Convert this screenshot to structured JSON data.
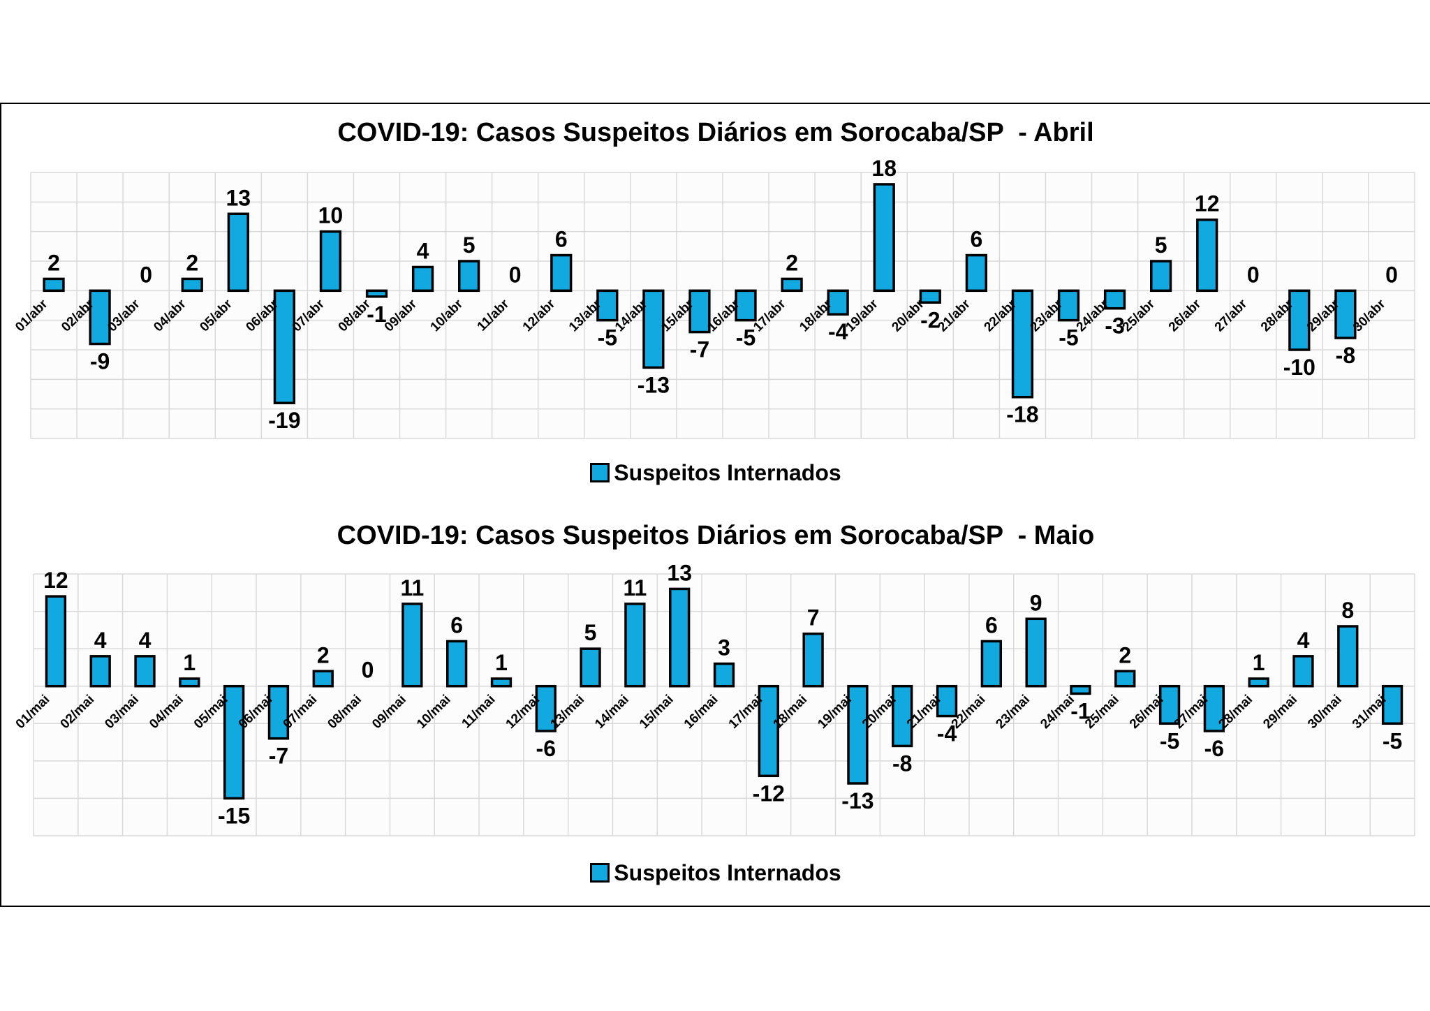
{
  "colors": {
    "bar_fill": "#12a8e0",
    "bar_stroke": "#000000",
    "grid": "#d9d9d9",
    "plot_bg": "#fcfcfc"
  },
  "chart_data": [
    {
      "type": "bar",
      "title": "COVID-19: Casos Suspeitos Diários em Sorocaba/SP  - Abril",
      "legend": "Suspeitos Internados",
      "legend_position": "bottom",
      "grid": true,
      "ylim": [
        -25,
        20
      ],
      "categories": [
        "01/abr",
        "02/abr",
        "03/abr",
        "04/abr",
        "05/abr",
        "06/abr",
        "07/abr",
        "08/abr",
        "09/abr",
        "10/abr",
        "11/abr",
        "12/abr",
        "13/abr",
        "14/abr",
        "15/abr",
        "16/abr",
        "17/abr",
        "18/abr",
        "19/abr",
        "20/abr",
        "21/abr",
        "22/abr",
        "23/abr",
        "24/abr",
        "25/abr",
        "26/abr",
        "27/abr",
        "28/abr",
        "29/abr",
        "30/abr"
      ],
      "series": [
        {
          "name": "Suspeitos Internados",
          "values": [
            2,
            -9,
            0,
            2,
            13,
            -19,
            10,
            -1,
            4,
            5,
            0,
            6,
            -5,
            -13,
            -7,
            -5,
            2,
            -4,
            18,
            -2,
            6,
            -18,
            -5,
            -3,
            5,
            12,
            0,
            -10,
            -8,
            0
          ]
        }
      ]
    },
    {
      "type": "bar",
      "title": "COVID-19: Casos Suspeitos Diários em Sorocaba/SP  - Maio",
      "legend": "Suspeitos Internados",
      "legend_position": "bottom",
      "grid": true,
      "ylim": [
        -20,
        15
      ],
      "categories": [
        "01/mai",
        "02/mai",
        "03/mai",
        "04/mai",
        "05/mai",
        "06/mai",
        "07/mai",
        "08/mai",
        "09/mai",
        "10/mai",
        "11/mai",
        "12/mai",
        "13/mai",
        "14/mai",
        "15/mai",
        "16/mai",
        "17/mai",
        "18/mai",
        "19/mai",
        "20/mai",
        "21/mai",
        "22/mai",
        "23/mai",
        "24/mai",
        "25/mai",
        "26/mai",
        "27/mai",
        "28/mai",
        "29/mai",
        "30/mai",
        "31/mai"
      ],
      "series": [
        {
          "name": "Suspeitos Internados",
          "values": [
            12,
            4,
            4,
            1,
            -15,
            -7,
            2,
            0,
            11,
            6,
            1,
            -6,
            5,
            11,
            13,
            3,
            -12,
            7,
            -13,
            -8,
            -4,
            6,
            9,
            -1,
            2,
            -5,
            -6,
            1,
            4,
            8,
            -5
          ]
        }
      ]
    }
  ]
}
